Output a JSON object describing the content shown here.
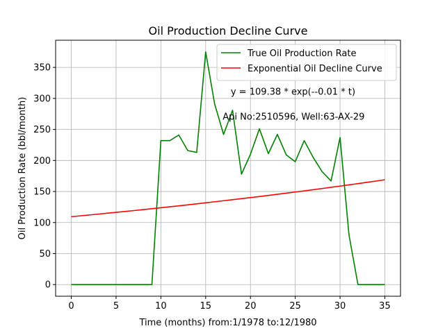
{
  "chart_data": {
    "type": "line",
    "title": "Oil Production Decline Curve",
    "xlabel": "Time (months) from:1/1978 to:12/1980",
    "ylabel": "Oil Production Rate (bbl/month)",
    "xlim": [
      -1.75,
      36.75
    ],
    "ylim": [
      -18.75,
      393.75
    ],
    "xticks": [
      0,
      5,
      10,
      15,
      20,
      25,
      30,
      35
    ],
    "yticks": [
      0,
      50,
      100,
      150,
      200,
      250,
      300,
      350
    ],
    "grid": true,
    "legend_position": "top-right",
    "x": [
      0,
      1,
      2,
      3,
      4,
      5,
      6,
      7,
      8,
      9,
      10,
      11,
      12,
      13,
      14,
      15,
      16,
      17,
      18,
      19,
      20,
      21,
      22,
      23,
      24,
      25,
      26,
      27,
      28,
      29,
      30,
      31,
      32,
      33,
      34,
      35
    ],
    "series": [
      {
        "name": "True Oil Production Rate",
        "color": "#008000",
        "values": [
          0,
          0,
          0,
          0,
          0,
          0,
          0,
          0,
          0,
          0,
          232,
          232,
          241,
          216,
          213,
          375,
          291,
          242,
          281,
          178,
          210,
          251,
          211,
          242,
          209,
          198,
          232,
          205,
          182,
          167,
          237,
          80,
          0,
          0,
          0,
          0
        ]
      },
      {
        "name": "Exponential Oil Decline Curve",
        "color": "#ff0000",
        "values": [
          109.4,
          110.8,
          112.2,
          113.6,
          115.0,
          116.4,
          117.8,
          119.3,
          120.8,
          122.3,
          123.8,
          125.4,
          126.9,
          128.5,
          130.1,
          131.8,
          133.4,
          135.1,
          136.8,
          138.5,
          140.2,
          141.9,
          143.7,
          145.5,
          147.3,
          149.2,
          151.0,
          152.9,
          154.8,
          156.8,
          158.7,
          160.7,
          162.7,
          164.8,
          166.8,
          168.9
        ]
      }
    ],
    "annotations": [
      {
        "text": "y = 109.38 * exp(--0.01 * t)",
        "x": 17.8,
        "y": 306
      },
      {
        "text": "Api No:2510596, Well:63-AX-29",
        "x": 16.9,
        "y": 266
      }
    ]
  }
}
